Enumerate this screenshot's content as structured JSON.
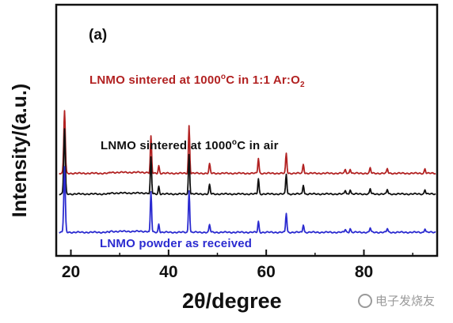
{
  "chart_data": {
    "type": "line",
    "panel_label": "(a)",
    "xlabel": "2θ/degree",
    "ylabel": "Intensity/(a.u.)",
    "xlim": [
      17,
      95
    ],
    "x_ticks": [
      20,
      40,
      60,
      80
    ],
    "y_ticks": [],
    "grid": false,
    "series": [
      {
        "name": "LNMO  sintered at 1000°C in 1:1 Ar:O2",
        "label_main": "LNMO  sintered at 1000",
        "label_sup": "o",
        "label_rest": "C in  1:1 Ar:O",
        "label_sub": "2",
        "color": "#b22222",
        "baseline_y": 82,
        "peaks": [
          [
            18.7,
            82
          ],
          [
            36.4,
            48
          ],
          [
            38.0,
            10
          ],
          [
            44.2,
            62
          ],
          [
            48.4,
            12
          ],
          [
            58.4,
            20
          ],
          [
            64.1,
            26
          ],
          [
            67.6,
            12
          ],
          [
            76.2,
            5
          ],
          [
            77.2,
            6
          ],
          [
            81.3,
            7
          ],
          [
            84.8,
            6
          ],
          [
            92.5,
            6
          ]
        ]
      },
      {
        "name": "LNMO sintered at 1000°C  in air",
        "label_main": "LNMO sintered at 1000",
        "label_sup": "o",
        "label_rest": "C  in air",
        "color": "#111111",
        "baseline_y": 55,
        "peaks": [
          [
            18.7,
            85
          ],
          [
            36.4,
            48
          ],
          [
            38.0,
            10
          ],
          [
            44.2,
            52
          ],
          [
            48.4,
            12
          ],
          [
            58.4,
            20
          ],
          [
            64.1,
            26
          ],
          [
            67.6,
            12
          ],
          [
            76.2,
            5
          ],
          [
            77.2,
            6
          ],
          [
            81.3,
            7
          ],
          [
            84.8,
            6
          ],
          [
            92.5,
            6
          ]
        ]
      },
      {
        "name": "LNMO powder as received",
        "label_main": "LNMO powder as received",
        "color": "#2b2bd0",
        "baseline_y": 5,
        "peaks": [
          [
            18.7,
            85
          ],
          [
            36.4,
            53
          ],
          [
            38.0,
            11
          ],
          [
            44.2,
            55
          ],
          [
            48.4,
            10
          ],
          [
            58.4,
            14
          ],
          [
            64.1,
            25
          ],
          [
            67.6,
            10
          ],
          [
            76.2,
            4
          ],
          [
            77.2,
            5
          ],
          [
            81.3,
            6
          ],
          [
            84.8,
            5
          ],
          [
            92.5,
            5
          ]
        ]
      }
    ]
  },
  "watermark": "电子发烧友"
}
